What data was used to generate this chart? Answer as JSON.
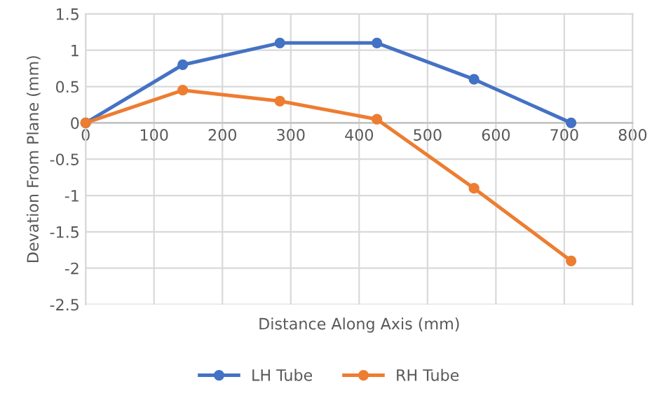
{
  "chart_data": {
    "type": "line",
    "xlabel": "Distance Along Axis (mm)",
    "ylabel": "Devation From Plane (mm)",
    "x": [
      0,
      142,
      284,
      426,
      568,
      710
    ],
    "series": [
      {
        "name": "LH Tube",
        "color": "#4472c4",
        "values": [
          0,
          0.8,
          1.1,
          1.1,
          0.6,
          0
        ]
      },
      {
        "name": "RH Tube",
        "color": "#ed7d31",
        "values": [
          0,
          0.45,
          0.3,
          0.05,
          -0.9,
          -1.9
        ]
      }
    ],
    "xlim": [
      0,
      800
    ],
    "xticks": [
      0,
      100,
      200,
      300,
      400,
      500,
      600,
      700,
      800
    ],
    "ylim": [
      -2.5,
      1.5
    ],
    "yticks": [
      -2.5,
      -2,
      -1.5,
      -1,
      -0.5,
      0,
      0.5,
      1,
      1.5
    ],
    "grid": true,
    "legend": "bottom",
    "marker": "circle",
    "line_style": "solid"
  }
}
